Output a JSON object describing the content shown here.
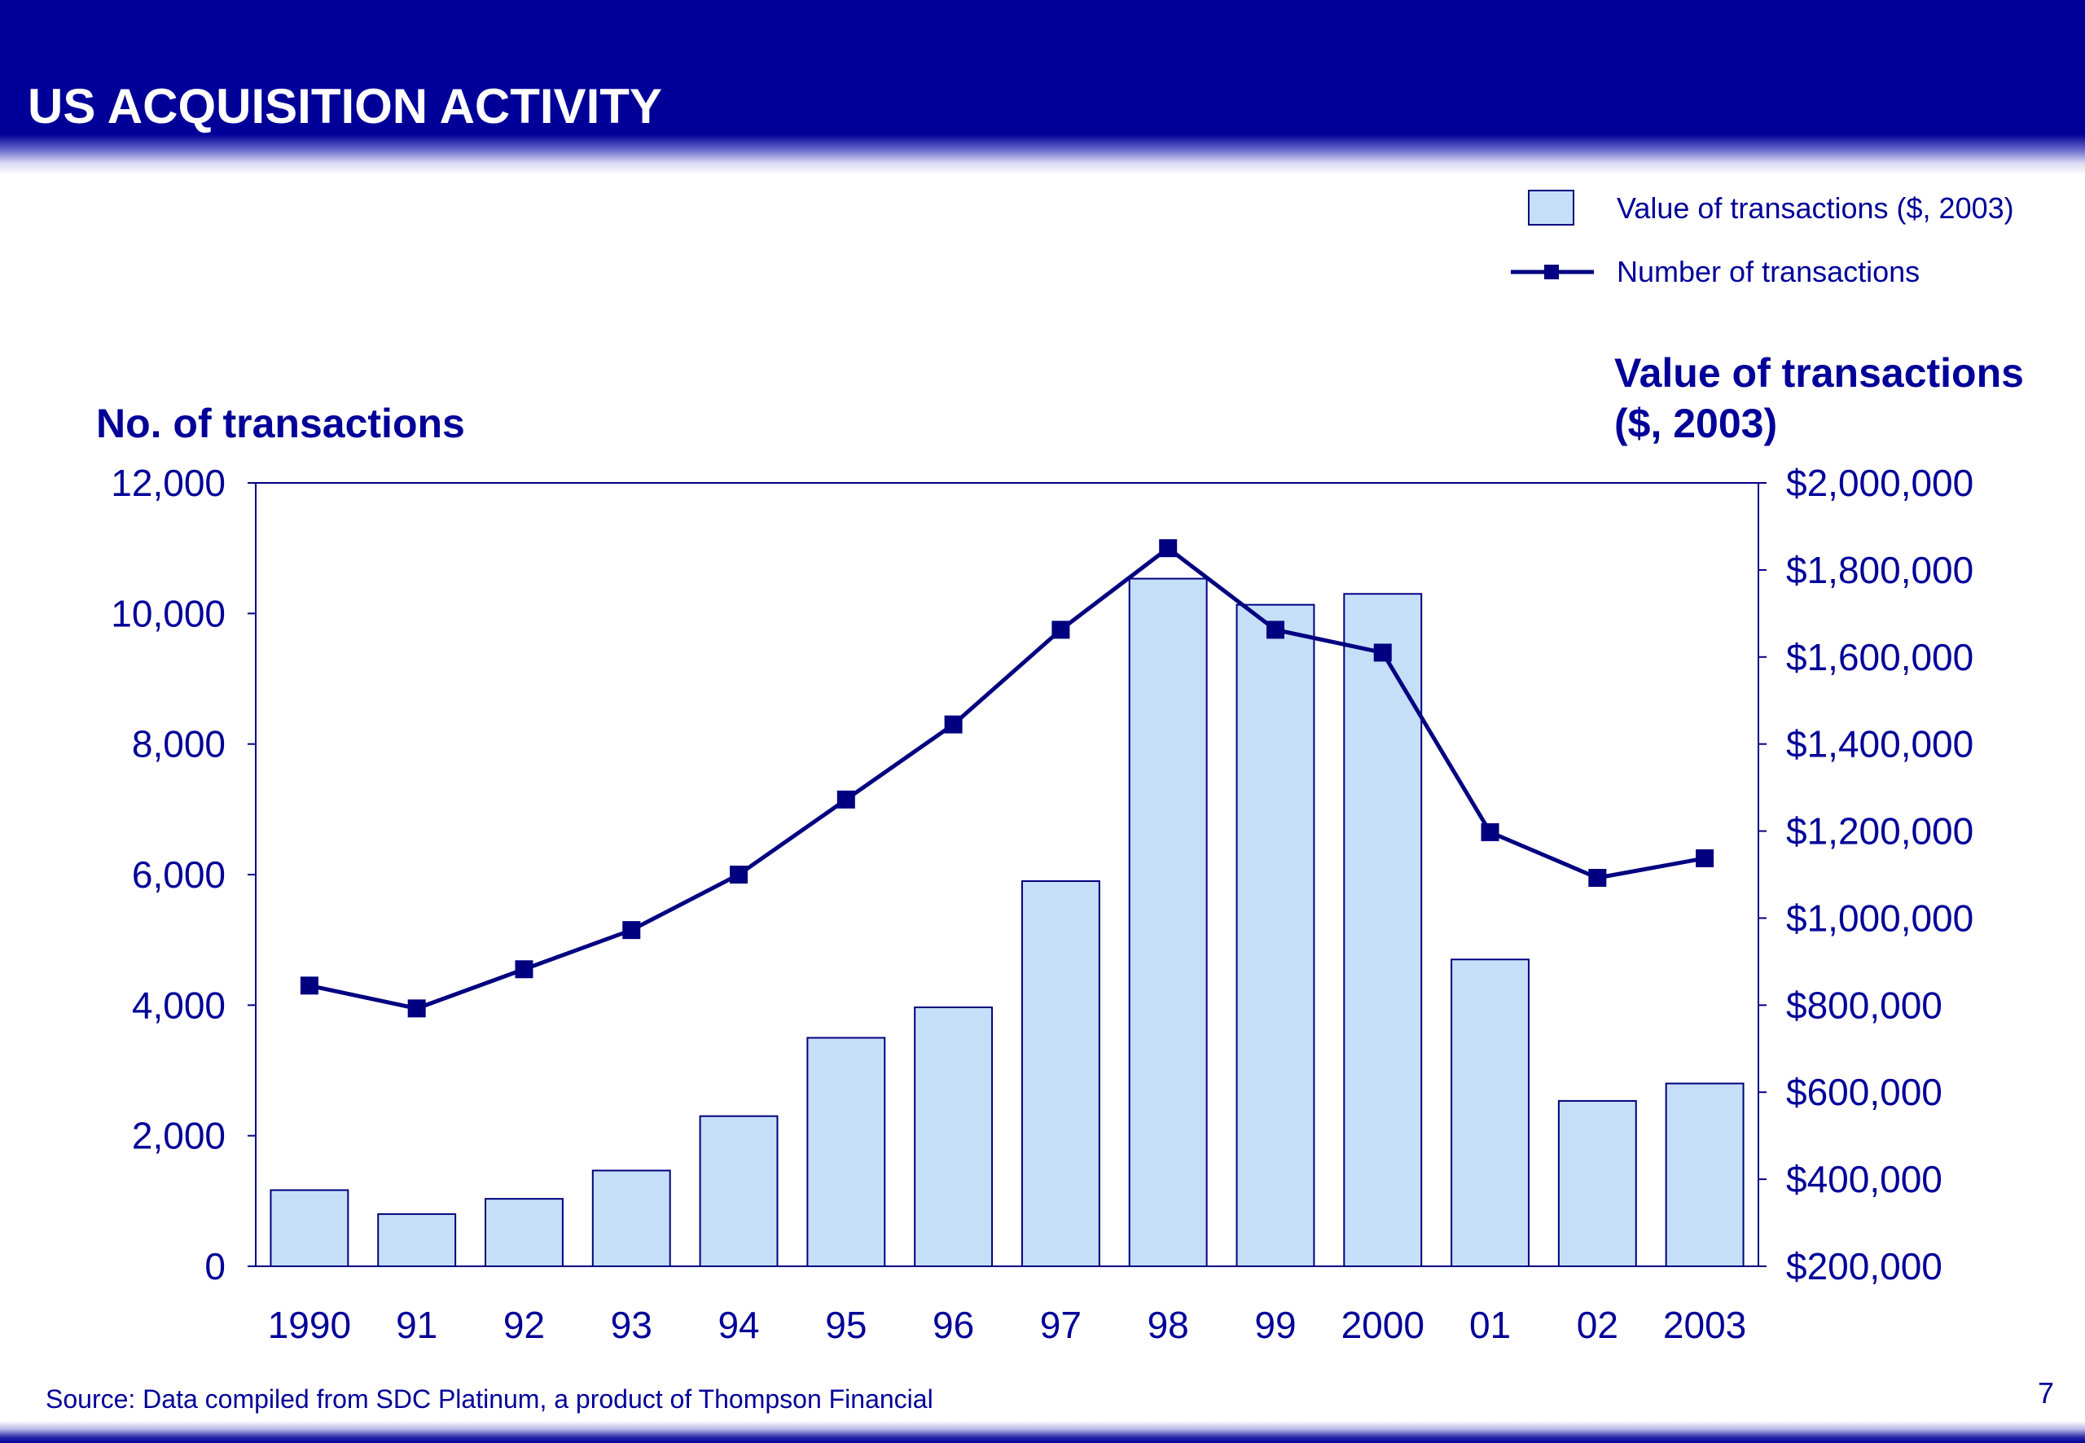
{
  "page": {
    "title": "US ACQUISITION ACTIVITY",
    "source": "Source: Data compiled from SDC Platinum, a product of Thompson Financial",
    "page_number": "7"
  },
  "colors": {
    "brand": "#000099",
    "bar_fill": "#c6dff8",
    "bar_stroke": "#000080",
    "line": "#000080"
  },
  "chart_data": {
    "type": "bar",
    "categories": [
      "1990",
      "91",
      "92",
      "93",
      "94",
      "95",
      "96",
      "97",
      "98",
      "99",
      "2000",
      "01",
      "02",
      "2003"
    ],
    "series": [
      {
        "name": "Value of transactions ($, 2003)",
        "type": "bar",
        "axis": "right",
        "values": [
          375000,
          320000,
          355000,
          420000,
          545000,
          725000,
          795000,
          1085000,
          1780000,
          1720000,
          1745000,
          905000,
          580000,
          620000
        ]
      },
      {
        "name": "Number of transactions",
        "type": "line",
        "axis": "left",
        "marker": "square",
        "values": [
          4300,
          3950,
          4550,
          5150,
          6000,
          7150,
          8300,
          9750,
          11000,
          9750,
          9400,
          6650,
          5950,
          6250
        ]
      }
    ],
    "left_axis": {
      "label": "No. of transactions",
      "min": 0,
      "max": 12000,
      "ticks": [
        0,
        2000,
        4000,
        6000,
        8000,
        10000,
        12000
      ],
      "tick_labels": [
        "0",
        "2,000",
        "4,000",
        "6,000",
        "8,000",
        "10,000",
        "12,000"
      ]
    },
    "right_axis": {
      "label_lines": [
        "Value of transactions",
        "($, 2003)"
      ],
      "min": 200000,
      "max": 2000000,
      "ticks": [
        200000,
        400000,
        600000,
        800000,
        1000000,
        1200000,
        1400000,
        1600000,
        1800000,
        2000000
      ],
      "tick_labels": [
        "$200,000",
        "$400,000",
        "$600,000",
        "$800,000",
        "$1,000,000",
        "$1,200,000",
        "$1,400,000",
        "$1,600,000",
        "$1,800,000",
        "$2,000,000"
      ]
    },
    "legend": {
      "position": "top-right",
      "entries": [
        "Value of transactions ($, 2003)",
        "Number of transactions"
      ]
    },
    "grid": false
  }
}
